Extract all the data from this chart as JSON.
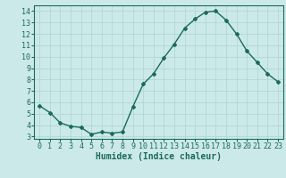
{
  "x": [
    0,
    1,
    2,
    3,
    4,
    5,
    6,
    7,
    8,
    9,
    10,
    11,
    12,
    13,
    14,
    15,
    16,
    17,
    18,
    19,
    20,
    21,
    22,
    23
  ],
  "y": [
    5.7,
    5.1,
    4.2,
    3.9,
    3.8,
    3.2,
    3.4,
    3.3,
    3.4,
    5.6,
    7.6,
    8.5,
    9.9,
    11.1,
    12.5,
    13.3,
    13.9,
    14.0,
    13.2,
    12.0,
    10.5,
    9.5,
    8.5,
    7.8
  ],
  "xlabel": "Humidex (Indice chaleur)",
  "xlim": [
    -0.5,
    23.5
  ],
  "ylim": [
    2.8,
    14.5
  ],
  "yticks": [
    3,
    4,
    5,
    6,
    7,
    8,
    9,
    10,
    11,
    12,
    13,
    14
  ],
  "xticks": [
    0,
    1,
    2,
    3,
    4,
    5,
    6,
    7,
    8,
    9,
    10,
    11,
    12,
    13,
    14,
    15,
    16,
    17,
    18,
    19,
    20,
    21,
    22,
    23
  ],
  "line_color": "#1a6b5a",
  "marker": "D",
  "marker_size": 2.0,
  "bg_color": "#cce9e9",
  "grid_color": "#aad4d4",
  "xlabel_fontsize": 7,
  "tick_fontsize": 6,
  "line_width": 1.0
}
